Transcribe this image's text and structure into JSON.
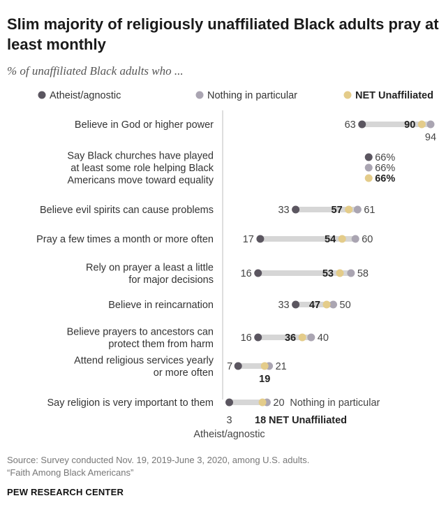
{
  "chart_data": {
    "type": "dot",
    "title": "Slim majority of religiously unaffiliated Black adults pray at least monthly",
    "subtitle": "% of unaffiliated Black adults who ...",
    "xlim": [
      0,
      100
    ],
    "legend": {
      "placement": "top",
      "entries": [
        {
          "key": "atheist",
          "label": "Atheist/agnostic",
          "color": "#5b5660"
        },
        {
          "key": "nothing",
          "label": "Nothing in particular",
          "color": "#aaa5b2"
        },
        {
          "key": "net",
          "label": "NET Unaffiliated",
          "color": "#e4cc8a",
          "bold": true
        }
      ]
    },
    "range_bar_color": "#d6d6d6",
    "series_names": {
      "atheist": "Atheist/agnostic",
      "nothing": "Nothing in particular",
      "net": "NET Unaffiliated"
    },
    "rows": [
      {
        "label": [
          "Believe in God or higher power"
        ],
        "atheist": 63,
        "nothing": 94,
        "net": 90
      },
      {
        "label": [
          "Say Black churches have played",
          "at least some role helping Black",
          "Americans move toward equality"
        ],
        "atheist": 66,
        "nothing": 66,
        "net": 66,
        "suffix": "%"
      },
      {
        "label": [
          "Believe evil spirits can cause problems"
        ],
        "atheist": 33,
        "nothing": 61,
        "net": 57
      },
      {
        "label": [
          "Pray a few times a month or more often"
        ],
        "atheist": 17,
        "nothing": 60,
        "net": 54
      },
      {
        "label": [
          "Rely on prayer a least a little",
          "for major decisions"
        ],
        "atheist": 16,
        "nothing": 58,
        "net": 53
      },
      {
        "label": [
          "Believe in reincarnation"
        ],
        "atheist": 33,
        "nothing": 50,
        "net": 47
      },
      {
        "label": [
          "Believe prayers to ancestors can",
          "protect them from harm"
        ],
        "atheist": 16,
        "nothing": 40,
        "net": 36
      },
      {
        "label": [
          "Attend religious services yearly",
          "or more often"
        ],
        "atheist": 7,
        "nothing": 21,
        "net": 19
      },
      {
        "label": [
          "Say religion is very important to them"
        ],
        "atheist": 3,
        "nothing": 20,
        "net": 18
      }
    ]
  },
  "source": {
    "line1": "Source: Survey conducted Nov. 19, 2019-June 3, 2020, among U.S. adults.",
    "line2": "“Faith Among Black Americans”"
  },
  "brand": "PEW RESEARCH CENTER"
}
